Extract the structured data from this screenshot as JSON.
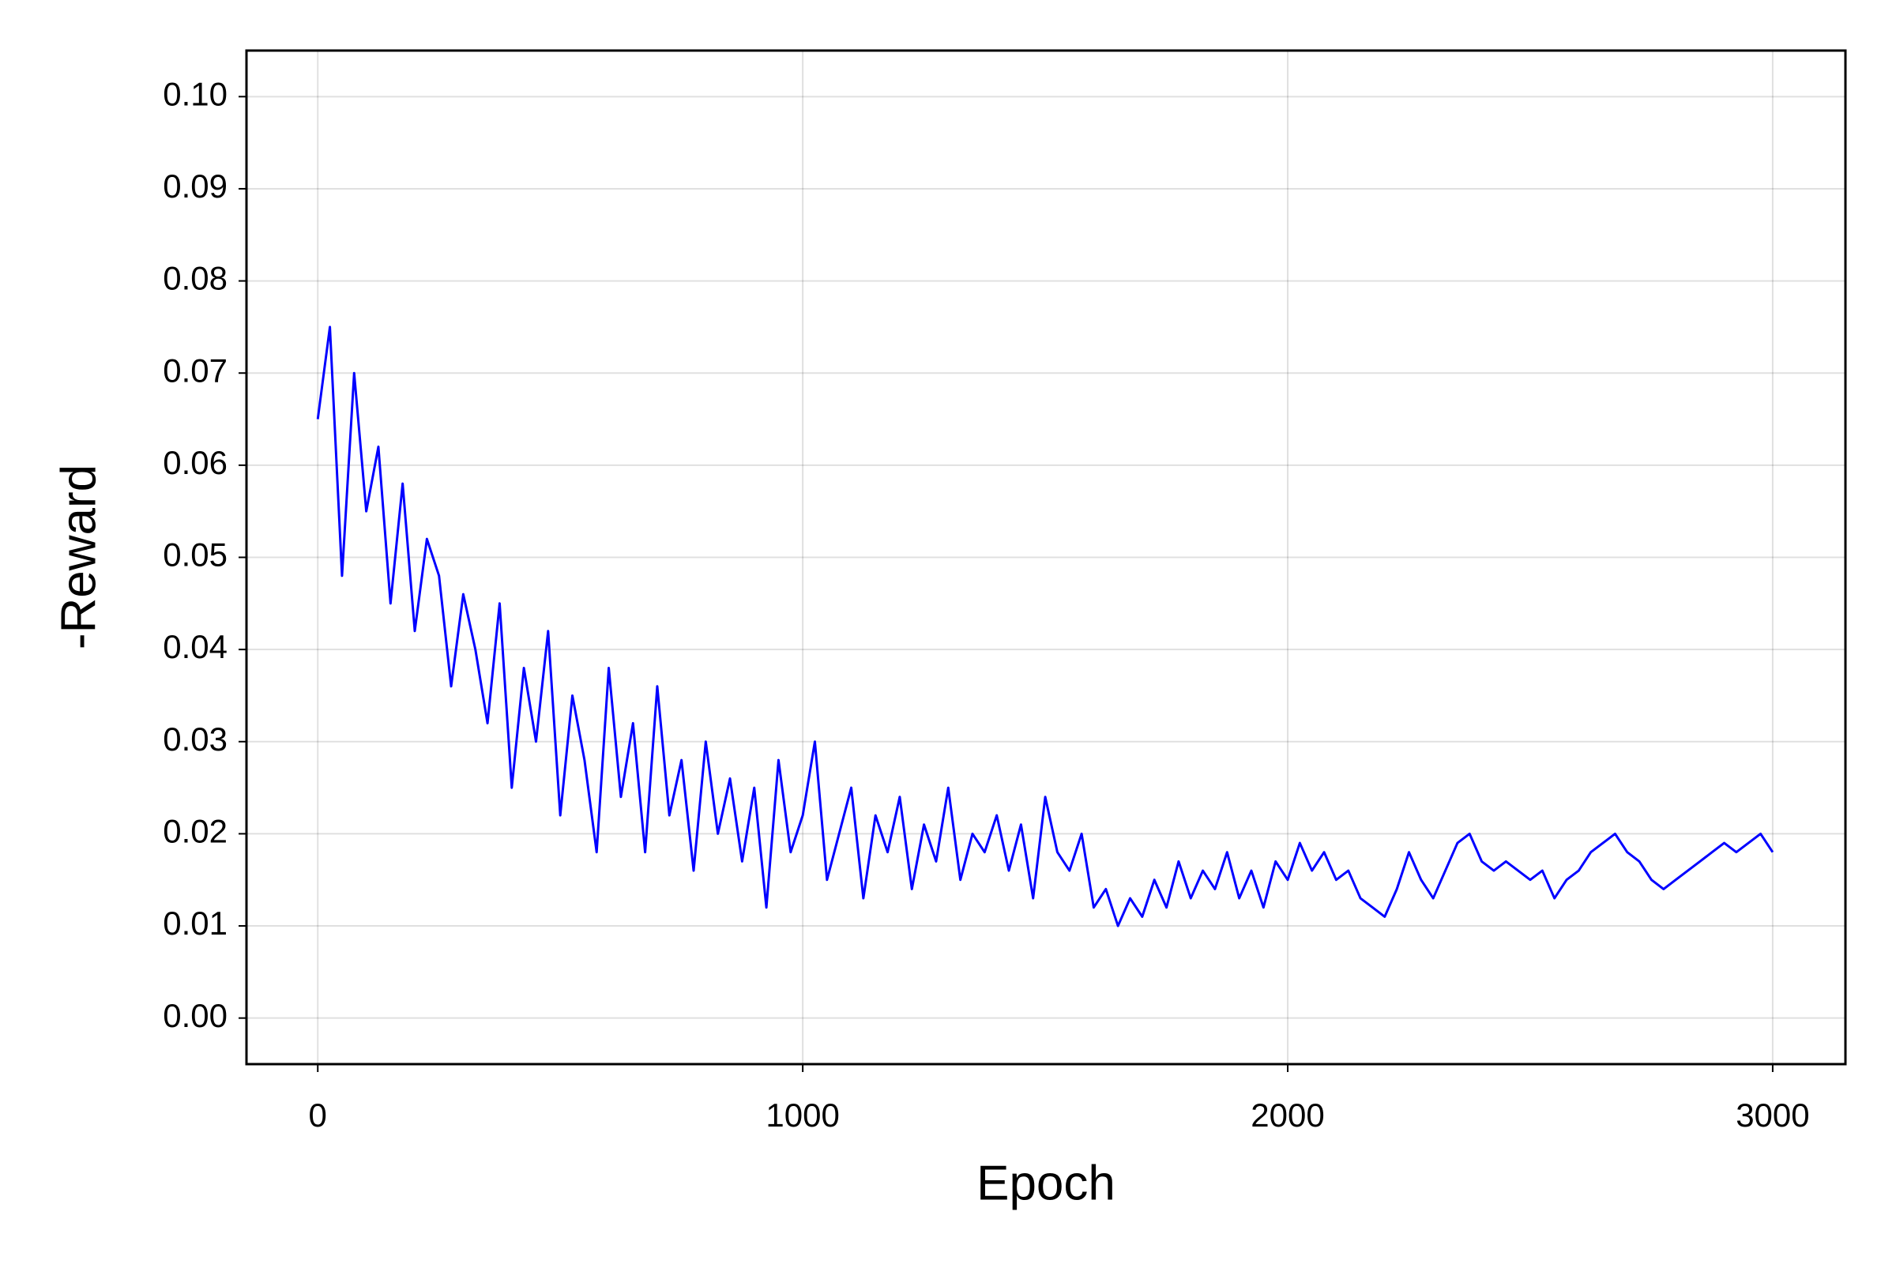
{
  "chart_data": {
    "type": "line",
    "xlabel": "Epoch",
    "ylabel": "-Reward",
    "x": [
      0,
      25,
      50,
      75,
      100,
      125,
      150,
      175,
      200,
      225,
      250,
      275,
      300,
      325,
      350,
      375,
      400,
      425,
      450,
      475,
      500,
      525,
      550,
      575,
      600,
      625,
      650,
      675,
      700,
      725,
      750,
      775,
      800,
      825,
      850,
      875,
      900,
      925,
      950,
      975,
      1000,
      1025,
      1050,
      1075,
      1100,
      1125,
      1150,
      1175,
      1200,
      1225,
      1250,
      1275,
      1300,
      1325,
      1350,
      1375,
      1400,
      1425,
      1450,
      1475,
      1500,
      1525,
      1550,
      1575,
      1600,
      1625,
      1650,
      1675,
      1700,
      1725,
      1750,
      1775,
      1800,
      1825,
      1850,
      1875,
      1900,
      1925,
      1950,
      1975,
      2000,
      2025,
      2050,
      2075,
      2100,
      2125,
      2150,
      2175,
      2200,
      2225,
      2250,
      2275,
      2300,
      2325,
      2350,
      2375,
      2400,
      2425,
      2450,
      2475,
      2500,
      2525,
      2550,
      2575,
      2600,
      2625,
      2650,
      2675,
      2700,
      2725,
      2750,
      2775,
      2800,
      2825,
      2850,
      2875,
      2900,
      2925,
      2950,
      2975,
      3000
    ],
    "series": [
      {
        "color": "#0000ff",
        "values": [
          0.065,
          0.075,
          0.048,
          0.07,
          0.055,
          0.062,
          0.045,
          0.058,
          0.042,
          0.052,
          0.048,
          0.036,
          0.046,
          0.04,
          0.032,
          0.045,
          0.025,
          0.038,
          0.03,
          0.042,
          0.022,
          0.035,
          0.028,
          0.018,
          0.038,
          0.024,
          0.032,
          0.018,
          0.036,
          0.022,
          0.028,
          0.016,
          0.03,
          0.02,
          0.026,
          0.017,
          0.025,
          0.012,
          0.028,
          0.018,
          0.022,
          0.03,
          0.015,
          0.02,
          0.025,
          0.013,
          0.022,
          0.018,
          0.024,
          0.014,
          0.021,
          0.017,
          0.025,
          0.015,
          0.02,
          0.018,
          0.022,
          0.016,
          0.021,
          0.013,
          0.024,
          0.018,
          0.016,
          0.02,
          0.012,
          0.014,
          0.01,
          0.013,
          0.011,
          0.015,
          0.012,
          0.017,
          0.013,
          0.016,
          0.014,
          0.018,
          0.013,
          0.016,
          0.012,
          0.017,
          0.015,
          0.019,
          0.016,
          0.018,
          0.015,
          0.016,
          0.013,
          0.012,
          0.011,
          0.014,
          0.018,
          0.015,
          0.013,
          0.016,
          0.019,
          0.02,
          0.017,
          0.016,
          0.017,
          0.016,
          0.015,
          0.016,
          0.013,
          0.015,
          0.016,
          0.018,
          0.019,
          0.02,
          0.018,
          0.017,
          0.015,
          0.014,
          0.015,
          0.016,
          0.017,
          0.018,
          0.019,
          0.018,
          0.019,
          0.02,
          0.018
        ]
      }
    ],
    "xlim": [
      -147,
      3150
    ],
    "ylim": [
      -0.005,
      0.105
    ],
    "xticks": [
      0,
      1000,
      2000,
      3000
    ],
    "yticks": [
      {
        "value": 0,
        "label": "0.00"
      },
      0.01,
      0.02,
      0.03,
      0.04,
      0.05,
      0.06,
      0.07,
      0.08,
      0.09,
      {
        "value": 0.1,
        "label": "0.10"
      }
    ],
    "grid": true
  }
}
